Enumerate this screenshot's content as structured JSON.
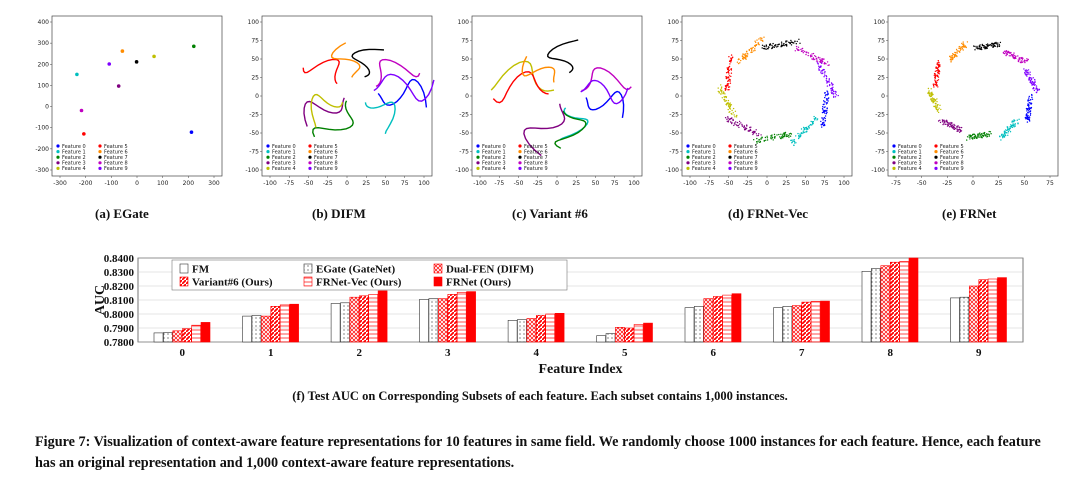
{
  "figure": {
    "caption": "Figure 7: Visualization of context-aware feature representations for 10 features in same field. We randomly choose 1000 instances for each feature. Hence, each feature has an original representation and 1,000 context-aware feature representations.",
    "subcaption_f": "(f) Test AUC on Corresponding Subsets of each feature. Each subset contains 1,000 instances."
  },
  "colors": {
    "features": [
      "#0000ff",
      "#00bfbf",
      "#008000",
      "#800080",
      "#bfbf00",
      "#ff0000",
      "#ff8c00",
      "#000000",
      "#c000c0",
      "#7f00ff"
    ],
    "bar_red": "#ff0000",
    "bar_black": "#333333"
  },
  "chart_data": [
    {
      "type": "scatter",
      "label": "(a) EGate",
      "xlim": [
        -300,
        300
      ],
      "ylim": [
        -300,
        400
      ],
      "xticks": [
        "-300",
        "-200",
        "-100",
        "0",
        "100",
        "200",
        "300"
      ],
      "yticks": [
        "400",
        "300",
        "200",
        "100",
        "0",
        "-100",
        "-200",
        "-300"
      ],
      "legend": [
        "Feature 0",
        "Feature 1",
        "Feature 2",
        "Feature 3",
        "Feature 4",
        "Feature 5",
        "Feature 6",
        "Feature 7",
        "Feature 8",
        "Feature 9"
      ]
    },
    {
      "type": "scatter",
      "label": "(b) DIFM",
      "xlim": [
        -100,
        100
      ],
      "ylim": [
        -100,
        100
      ],
      "xticks": [
        "-100",
        "-75",
        "-50",
        "-25",
        "0",
        "25",
        "50",
        "75",
        "100"
      ],
      "yticks": [
        "100",
        "75",
        "50",
        "25",
        "0",
        "-25",
        "-50",
        "-75",
        "-100"
      ],
      "legend": [
        "Feature 0",
        "Feature 1",
        "Feature 2",
        "Feature 3",
        "Feature 4",
        "Feature 5",
        "Feature 6",
        "Feature 7",
        "Feature 8",
        "Feature 9"
      ]
    },
    {
      "type": "scatter",
      "label": "(c) Variant #6",
      "xlim": [
        -100,
        100
      ],
      "ylim": [
        -100,
        100
      ],
      "xticks": [
        "-100",
        "-75",
        "-50",
        "-25",
        "0",
        "25",
        "50",
        "75",
        "100"
      ],
      "yticks": [
        "100",
        "75",
        "50",
        "25",
        "0",
        "-25",
        "-50",
        "-75",
        "-100"
      ],
      "legend": [
        "Feature 0",
        "Feature 1",
        "Feature 2",
        "Feature 3",
        "Feature 4",
        "Feature 5",
        "Feature 6",
        "Feature 7",
        "Feature 8",
        "Feature 9"
      ]
    },
    {
      "type": "scatter",
      "label": "(d) FRNet-Vec",
      "xlim": [
        -100,
        100
      ],
      "ylim": [
        -100,
        100
      ],
      "xticks": [
        "-100",
        "-75",
        "-50",
        "-25",
        "0",
        "25",
        "50",
        "75",
        "100"
      ],
      "yticks": [
        "100",
        "75",
        "50",
        "25",
        "0",
        "-25",
        "-50",
        "-75",
        "-100"
      ],
      "legend": [
        "Feature 0",
        "Feature 1",
        "Feature 2",
        "Feature 3",
        "Feature 4",
        "Feature 5",
        "Feature 6",
        "Feature 7",
        "Feature 8",
        "Feature 9"
      ]
    },
    {
      "type": "scatter",
      "label": "(e) FRNet",
      "xlim": [
        -75,
        75
      ],
      "ylim": [
        -100,
        100
      ],
      "xticks": [
        "-75",
        "-50",
        "-25",
        "0",
        "25",
        "50",
        "75"
      ],
      "yticks": [
        "100",
        "75",
        "50",
        "25",
        "0",
        "-25",
        "-50",
        "-75",
        "-100"
      ],
      "legend": [
        "Feature 0",
        "Feature 1",
        "Feature 2",
        "Feature 3",
        "Feature 4",
        "Feature 5",
        "Feature 6",
        "Feature 7",
        "Feature 8",
        "Feature 9"
      ]
    },
    {
      "type": "bar",
      "title": "",
      "xlabel": "Feature Index",
      "ylabel": "AUC",
      "ylim": [
        0.78,
        0.84
      ],
      "yticks": [
        "0.8400",
        "0.8300",
        "0.8200",
        "0.8100",
        "0.8000",
        "0.7900",
        "0.7800"
      ],
      "categories": [
        "0",
        "1",
        "2",
        "3",
        "4",
        "5",
        "6",
        "7",
        "8",
        "9"
      ],
      "legend_placement": "top-left",
      "series": [
        {
          "name": "FM",
          "values": [
            0.7865,
            0.7985,
            0.8075,
            0.8105,
            0.7955,
            0.7845,
            0.8045,
            0.8045,
            0.8305,
            0.8115
          ]
        },
        {
          "name": "EGate (GateNet)",
          "values": [
            0.7868,
            0.799,
            0.808,
            0.811,
            0.796,
            0.786,
            0.8055,
            0.8055,
            0.8325,
            0.812
          ]
        },
        {
          "name": "Dual-FEN (DIFM)",
          "values": [
            0.788,
            0.7985,
            0.812,
            0.811,
            0.7968,
            0.7905,
            0.811,
            0.806,
            0.8345,
            0.82
          ]
        },
        {
          "name": "Variant#6 (Ours)",
          "values": [
            0.7895,
            0.8055,
            0.813,
            0.814,
            0.799,
            0.79,
            0.8125,
            0.8085,
            0.837,
            0.8245
          ]
        },
        {
          "name": "FRNet-Vec (Ours)",
          "values": [
            0.792,
            0.8065,
            0.814,
            0.8155,
            0.8,
            0.7925,
            0.8135,
            0.809,
            0.8375,
            0.825
          ]
        },
        {
          "name": "FRNet (Ours)",
          "values": [
            0.794,
            0.807,
            0.8165,
            0.816,
            0.8005,
            0.7935,
            0.8145,
            0.8092,
            0.84,
            0.826
          ]
        }
      ]
    }
  ]
}
